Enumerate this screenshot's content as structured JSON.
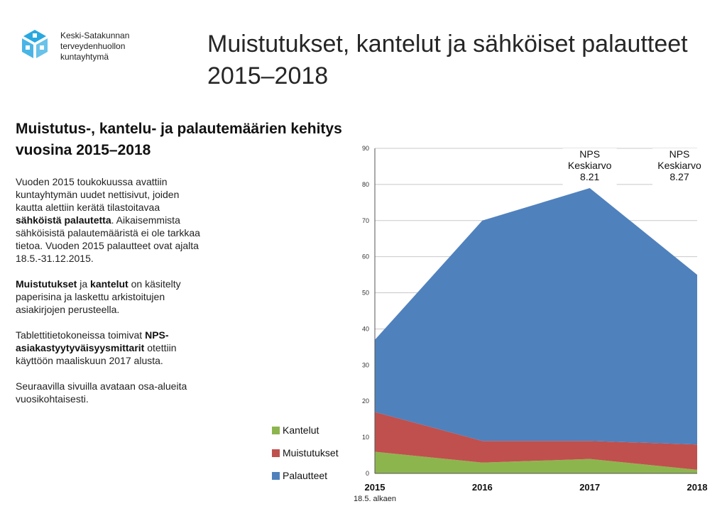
{
  "header": {
    "org_lines": [
      "Keski-Satakunnan",
      "terveydenhuollon",
      "kuntayhtymä"
    ],
    "title": "Muistutukset, kantelut ja sähköiset palautteet 2015–2018"
  },
  "left": {
    "heading": "Muistutus-, kantelu- ja palautemäärien kehitys vuosina 2015–2018",
    "p1_a": "Vuoden 2015 toukokuussa avattiin kuntayhtymän uudet nettisivut, joiden kautta alettiin kerätä tilastoitavaa ",
    "p1_b": "sähköistä palautetta",
    "p1_c": ". Aikaisemmista sähköisistä palautemääristä ei ole tarkkaa tietoa. Vuoden 2015 palautteet ovat ajalta 18.5.-31.12.2015.",
    "p2_a": "Muistutukset",
    "p2_b": " ja ",
    "p2_c": "kantelut",
    "p2_d": " on käsitelty paperisina ja laskettu arkistoitujen asiakirjojen perusteella.",
    "p3_a": "Tablettitietokoneissa toimivat ",
    "p3_b": "NPS-asiakastyytyväisyysmittarit",
    "p3_c": " otettiin käyttöön maaliskuun 2017 alusta.",
    "p4": "Seuraavilla sivuilla avataan osa-alueita vuosikohtaisesti."
  },
  "colors": {
    "kantelut": "#8db54e",
    "muistutukset": "#c0504d",
    "palautteet": "#4f81bd",
    "logo": "#29a8e0"
  },
  "chart_data": {
    "type": "area",
    "stacked": true,
    "x": [
      "2015",
      "2016",
      "2017",
      "2018"
    ],
    "x_sublabels": [
      "18.5. alkaen",
      "",
      "",
      ""
    ],
    "ylim": [
      0,
      90
    ],
    "yticks": [
      0,
      10,
      20,
      30,
      40,
      50,
      60,
      70,
      80,
      90
    ],
    "grid": true,
    "legend_position": "bottom-left",
    "series": [
      {
        "name": "Kantelut",
        "key": "kantelut",
        "values": [
          6,
          3,
          4,
          1
        ]
      },
      {
        "name": "Muistutukset",
        "key": "muistutukset",
        "values": [
          11,
          6,
          5,
          7
        ]
      },
      {
        "name": "Palautteet",
        "key": "palautteet",
        "values": [
          20,
          61,
          70,
          47
        ]
      }
    ],
    "annotations": [
      {
        "x": "2017",
        "lines": [
          "NPS",
          "Keskiarvo",
          "8.21"
        ]
      },
      {
        "x": "2018",
        "lines": [
          "NPS",
          "Keskiarvo",
          "8.27"
        ]
      }
    ]
  }
}
